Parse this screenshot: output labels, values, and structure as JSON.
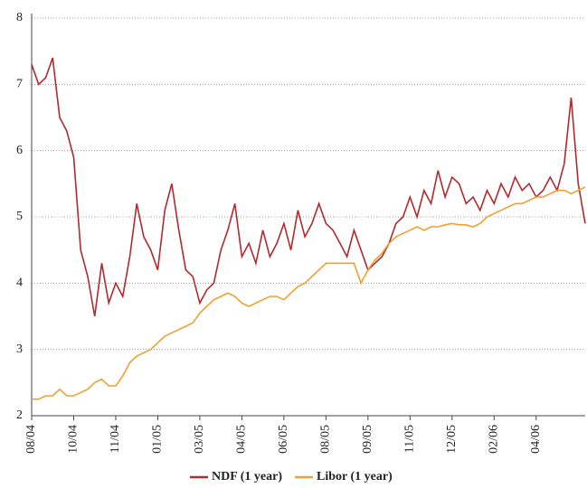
{
  "chart_data": {
    "type": "line",
    "categories": [
      "08/04",
      null,
      null,
      null,
      null,
      null,
      "10/04",
      null,
      null,
      null,
      null,
      null,
      "11/04",
      null,
      null,
      null,
      null,
      null,
      "01/05",
      null,
      null,
      null,
      null,
      null,
      "03/05",
      null,
      null,
      null,
      null,
      null,
      "04/05",
      null,
      null,
      null,
      null,
      null,
      "06/05",
      null,
      null,
      null,
      null,
      null,
      "08/05",
      null,
      null,
      null,
      null,
      null,
      "09/05",
      null,
      null,
      null,
      null,
      null,
      "11/05",
      null,
      null,
      null,
      null,
      null,
      "12/05",
      null,
      null,
      null,
      null,
      null,
      "02/06",
      null,
      null,
      null,
      null,
      null,
      "04/06",
      null,
      null,
      null,
      null,
      null,
      null,
      null
    ],
    "series": [
      {
        "name": "NDF (1 year)",
        "color": "#b22a2e",
        "values": [
          7.3,
          7.0,
          7.1,
          7.4,
          6.5,
          6.3,
          5.9,
          4.5,
          4.1,
          3.5,
          4.3,
          3.7,
          4.0,
          3.8,
          4.4,
          5.2,
          4.7,
          4.5,
          4.2,
          5.1,
          5.5,
          4.8,
          4.2,
          4.1,
          3.7,
          3.9,
          4.0,
          4.5,
          4.8,
          5.2,
          4.4,
          4.6,
          4.3,
          4.8,
          4.4,
          4.6,
          4.9,
          4.5,
          5.1,
          4.7,
          4.9,
          5.2,
          4.9,
          4.8,
          4.6,
          4.4,
          4.8,
          4.5,
          4.2,
          4.3,
          4.4,
          4.6,
          4.9,
          5.0,
          5.3,
          5.0,
          5.4,
          5.2,
          5.7,
          5.3,
          5.6,
          5.5,
          5.2,
          5.3,
          5.1,
          5.4,
          5.2,
          5.5,
          5.3,
          5.6,
          5.4,
          5.5,
          5.3,
          5.4,
          5.6,
          5.4,
          5.8,
          6.8,
          5.5,
          4.9
        ]
      },
      {
        "name": "Libor (1 year)",
        "color": "#f0a030",
        "values": [
          2.25,
          2.25,
          2.3,
          2.3,
          2.4,
          2.3,
          2.3,
          2.35,
          2.4,
          2.5,
          2.55,
          2.45,
          2.45,
          2.6,
          2.8,
          2.9,
          2.95,
          3.0,
          3.1,
          3.2,
          3.25,
          3.3,
          3.35,
          3.4,
          3.55,
          3.65,
          3.75,
          3.8,
          3.85,
          3.8,
          3.7,
          3.65,
          3.7,
          3.75,
          3.8,
          3.8,
          3.75,
          3.85,
          3.95,
          4.0,
          4.1,
          4.2,
          4.3,
          4.3,
          4.3,
          4.3,
          4.3,
          4.0,
          4.2,
          4.35,
          4.45,
          4.6,
          4.7,
          4.75,
          4.8,
          4.85,
          4.8,
          4.85,
          4.85,
          4.88,
          4.9,
          4.88,
          4.88,
          4.85,
          4.9,
          5.0,
          5.05,
          5.1,
          5.15,
          5.2,
          5.2,
          5.25,
          5.3,
          5.3,
          5.35,
          5.4,
          5.4,
          5.35,
          5.4,
          5.45
        ]
      }
    ],
    "ylim": [
      2,
      8
    ],
    "yticks": [
      2,
      3,
      4,
      5,
      6,
      7,
      8
    ],
    "grid": true,
    "legend": "bottom"
  }
}
